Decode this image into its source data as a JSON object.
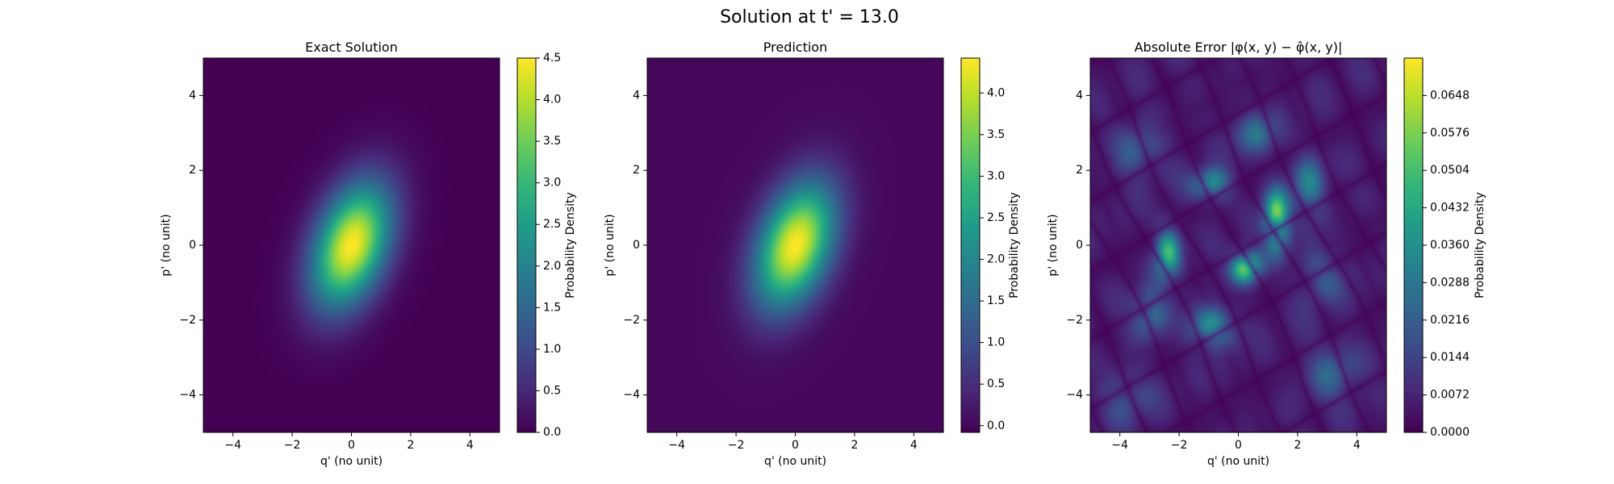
{
  "figure": {
    "suptitle": "Solution at t' = 13.0"
  },
  "chart_data": [
    {
      "type": "heatmap",
      "title": "Exact Solution",
      "xlabel": "q' (no unit)",
      "ylabel": "p' (no unit)",
      "xlim": [
        -5,
        5
      ],
      "ylim": [
        -5,
        5
      ],
      "xticks": [
        "−4",
        "−2",
        "0",
        "2",
        "4"
      ],
      "yticks": [
        "−4",
        "−2",
        "0",
        "2",
        "4"
      ],
      "colorbar_label": "Probability Density",
      "colorbar_range": [
        0.0,
        4.5
      ],
      "colorbar_ticks": [
        "0.0",
        "0.5",
        "1.0",
        "1.5",
        "2.0",
        "2.5",
        "3.0",
        "3.5",
        "4.0",
        "4.5"
      ],
      "colormap": "viridis",
      "field": {
        "kind": "gaussian",
        "peak": 4.5,
        "center": [
          0,
          0
        ],
        "sigma_major": 1.25,
        "sigma_minor": 0.8,
        "tilt_deg": 60
      }
    },
    {
      "type": "heatmap",
      "title": "Prediction",
      "xlabel": "q' (no unit)",
      "ylabel": "p' (no unit)",
      "xlim": [
        -5,
        5
      ],
      "ylim": [
        -5,
        5
      ],
      "xticks": [
        "−4",
        "−2",
        "0",
        "2",
        "4"
      ],
      "yticks": [
        "−4",
        "−2",
        "0",
        "2",
        "4"
      ],
      "colorbar_label": "Probability Density",
      "colorbar_range": [
        -0.08,
        4.42
      ],
      "colorbar_ticks": [
        "0.0",
        "0.5",
        "1.0",
        "1.5",
        "2.0",
        "2.5",
        "3.0",
        "3.5",
        "4.0"
      ],
      "colormap": "viridis",
      "field": {
        "kind": "gaussian",
        "peak": 4.42,
        "center": [
          0,
          0
        ],
        "sigma_major": 1.25,
        "sigma_minor": 0.8,
        "tilt_deg": 60
      }
    },
    {
      "type": "heatmap",
      "title": "Absolute Error |φ(x, y) − φ̂(x, y)|",
      "xlabel": "q' (no unit)",
      "ylabel": "p' (no unit)",
      "xlim": [
        -5,
        5
      ],
      "ylim": [
        -5,
        5
      ],
      "xticks": [
        "−4",
        "−2",
        "0",
        "2",
        "4"
      ],
      "yticks": [
        "−4",
        "−2",
        "0",
        "2",
        "4"
      ],
      "colorbar_label": "Probability Density",
      "colorbar_range": [
        0.0,
        0.072
      ],
      "colorbar_ticks": [
        "0.0000",
        "0.0072",
        "0.0144",
        "0.0216",
        "0.0288",
        "0.0360",
        "0.0432",
        "0.0504",
        "0.0576",
        "0.0648"
      ],
      "colormap": "viridis",
      "field": {
        "kind": "error_blobs",
        "peak": 0.07
      }
    }
  ]
}
